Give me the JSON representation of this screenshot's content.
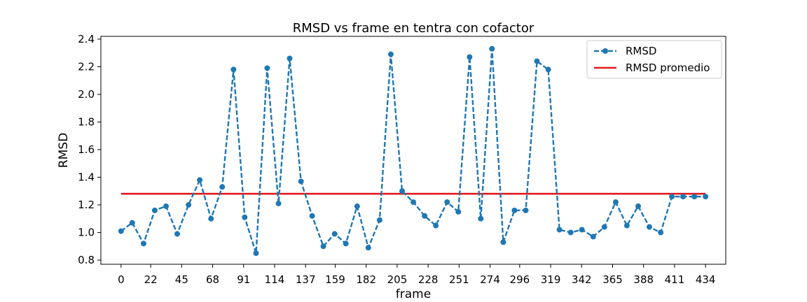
{
  "chart_data": {
    "type": "line",
    "title": "RMSD vs frame en tentra con cofactor",
    "xlabel": "frame",
    "ylabel": "RMSD",
    "xlim": [
      -15,
      449
    ],
    "ylim": [
      0.77,
      2.42
    ],
    "xticks": [
      0,
      22,
      45,
      68,
      91,
      114,
      137,
      159,
      182,
      205,
      228,
      251,
      274,
      296,
      319,
      342,
      365,
      388,
      411,
      434
    ],
    "yticks": [
      0.8,
      1.0,
      1.2,
      1.4,
      1.6,
      1.8,
      2.0,
      2.2,
      2.4
    ],
    "ytick_labels": [
      "0.8",
      "1.0",
      "1.2",
      "1.4",
      "1.6",
      "1.8",
      "2.0",
      "2.2",
      "2.4"
    ],
    "grid": false,
    "legend_position": "top-right",
    "series": [
      {
        "name": "RMSD",
        "style": "dashed-line-with-markers",
        "color": "#1f77b4",
        "x": [
          0,
          8.3,
          16.7,
          25.0,
          33.4,
          41.7,
          50.1,
          58.4,
          66.8,
          75.1,
          83.5,
          91.8,
          100.2,
          108.5,
          116.9,
          125.2,
          133.6,
          141.9,
          150.2,
          158.6,
          166.9,
          175.3,
          183.6,
          192.0,
          200.3,
          208.7,
          217.0,
          225.4,
          233.7,
          242.1,
          250.4,
          258.8,
          267.1,
          275.4,
          283.8,
          292.1,
          300.5,
          308.8,
          317.2,
          325.5,
          333.9,
          342.2,
          350.6,
          358.9,
          367.3,
          375.6,
          384.0,
          392.3,
          400.7,
          409.0,
          417.3,
          425.7,
          434.0
        ],
        "values": [
          1.01,
          1.07,
          0.92,
          1.16,
          1.19,
          0.99,
          1.2,
          1.38,
          1.1,
          1.33,
          2.18,
          1.11,
          0.85,
          2.19,
          1.21,
          2.26,
          1.37,
          1.12,
          0.9,
          0.99,
          0.92,
          1.19,
          0.89,
          1.09,
          2.29,
          1.3,
          1.22,
          1.12,
          1.05,
          1.22,
          1.15,
          2.27,
          1.1,
          2.33,
          0.93,
          1.16,
          1.16,
          2.24,
          2.18,
          1.02,
          1.0,
          1.02,
          0.97,
          1.04,
          1.22,
          1.05,
          1.19,
          1.04,
          1.0,
          1.26,
          1.26,
          1.26,
          1.26
        ]
      },
      {
        "name": "RMSD promedio",
        "style": "solid",
        "color": "#e31a1c",
        "x": [
          0,
          434
        ],
        "values": [
          1.28,
          1.28
        ]
      }
    ]
  }
}
